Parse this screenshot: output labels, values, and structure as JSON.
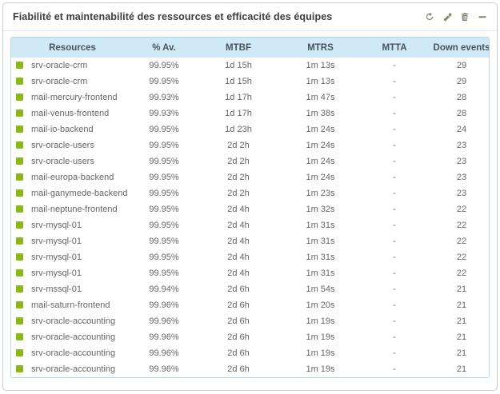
{
  "widget": {
    "title": "Fiabilité et maintenabilité des ressources et efficacité des équipes",
    "toolbar": {
      "icons": [
        "refresh-icon",
        "wrench-icon",
        "trash-icon",
        "collapse-icon"
      ]
    }
  },
  "table": {
    "columns": [
      "Resources",
      "% Av.",
      "MTBF",
      "MTRS",
      "MTTA",
      "Down events"
    ],
    "rows": [
      {
        "status": "ok",
        "resource": "srv-oracle-crm",
        "availability": "99.95%",
        "mtbf": "1d 15h",
        "mtrs": "1m 13s",
        "mtta": "-",
        "down_events": "29"
      },
      {
        "status": "ok",
        "resource": "srv-oracle-crm",
        "availability": "99.95%",
        "mtbf": "1d 15h",
        "mtrs": "1m 13s",
        "mtta": "-",
        "down_events": "29"
      },
      {
        "status": "ok",
        "resource": "mail-mercury-frontend",
        "availability": "99.93%",
        "mtbf": "1d 17h",
        "mtrs": "1m 47s",
        "mtta": "-",
        "down_events": "28"
      },
      {
        "status": "ok",
        "resource": "mail-venus-frontend",
        "availability": "99.93%",
        "mtbf": "1d 17h",
        "mtrs": "1m 38s",
        "mtta": "-",
        "down_events": "28"
      },
      {
        "status": "ok",
        "resource": "mail-io-backend",
        "availability": "99.95%",
        "mtbf": "1d 23h",
        "mtrs": "1m 24s",
        "mtta": "-",
        "down_events": "24"
      },
      {
        "status": "ok",
        "resource": "srv-oracle-users",
        "availability": "99.95%",
        "mtbf": "2d 2h",
        "mtrs": "1m 24s",
        "mtta": "-",
        "down_events": "23"
      },
      {
        "status": "ok",
        "resource": "srv-oracle-users",
        "availability": "99.95%",
        "mtbf": "2d 2h",
        "mtrs": "1m 24s",
        "mtta": "-",
        "down_events": "23"
      },
      {
        "status": "ok",
        "resource": "mail-europa-backend",
        "availability": "99.95%",
        "mtbf": "2d 2h",
        "mtrs": "1m 24s",
        "mtta": "-",
        "down_events": "23"
      },
      {
        "status": "ok",
        "resource": "mail-ganymede-backend",
        "availability": "99.95%",
        "mtbf": "2d 2h",
        "mtrs": "1m 23s",
        "mtta": "-",
        "down_events": "23"
      },
      {
        "status": "ok",
        "resource": "mail-neptune-frontend",
        "availability": "99.95%",
        "mtbf": "2d 4h",
        "mtrs": "1m 32s",
        "mtta": "-",
        "down_events": "22"
      },
      {
        "status": "ok",
        "resource": "srv-mysql-01",
        "availability": "99.95%",
        "mtbf": "2d 4h",
        "mtrs": "1m 31s",
        "mtta": "-",
        "down_events": "22"
      },
      {
        "status": "ok",
        "resource": "srv-mysql-01",
        "availability": "99.95%",
        "mtbf": "2d 4h",
        "mtrs": "1m 31s",
        "mtta": "-",
        "down_events": "22"
      },
      {
        "status": "ok",
        "resource": "srv-mysql-01",
        "availability": "99.95%",
        "mtbf": "2d 4h",
        "mtrs": "1m 31s",
        "mtta": "-",
        "down_events": "22"
      },
      {
        "status": "ok",
        "resource": "srv-mysql-01",
        "availability": "99.95%",
        "mtbf": "2d 4h",
        "mtrs": "1m 31s",
        "mtta": "-",
        "down_events": "22"
      },
      {
        "status": "ok",
        "resource": "srv-mssql-01",
        "availability": "99.94%",
        "mtbf": "2d 6h",
        "mtrs": "1m 54s",
        "mtta": "-",
        "down_events": "21"
      },
      {
        "status": "ok",
        "resource": "mail-saturn-frontend",
        "availability": "99.96%",
        "mtbf": "2d 6h",
        "mtrs": "1m 20s",
        "mtta": "-",
        "down_events": "21"
      },
      {
        "status": "ok",
        "resource": "srv-oracle-accounting",
        "availability": "99.96%",
        "mtbf": "2d 6h",
        "mtrs": "1m 19s",
        "mtta": "-",
        "down_events": "21"
      },
      {
        "status": "ok",
        "resource": "srv-oracle-accounting",
        "availability": "99.96%",
        "mtbf": "2d 6h",
        "mtrs": "1m 19s",
        "mtta": "-",
        "down_events": "21"
      },
      {
        "status": "ok",
        "resource": "srv-oracle-accounting",
        "availability": "99.96%",
        "mtbf": "2d 6h",
        "mtrs": "1m 19s",
        "mtta": "-",
        "down_events": "21"
      },
      {
        "status": "ok",
        "resource": "srv-oracle-accounting",
        "availability": "99.96%",
        "mtbf": "2d 6h",
        "mtrs": "1m 19s",
        "mtta": "-",
        "down_events": "21"
      }
    ]
  },
  "colors": {
    "status_ok": "#88b917",
    "header_bg": "#cfe9f6",
    "table_border": "#b9d5e4",
    "icon_color": "#85816f"
  }
}
